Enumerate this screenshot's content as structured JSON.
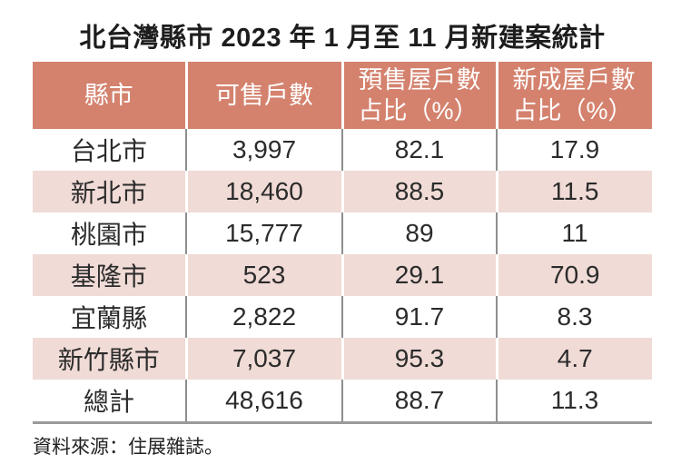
{
  "title": "北台灣縣市 2023 年 1 月至 11 月新建案統計",
  "source_note": "資料來源：住展雜誌。",
  "colors": {
    "header_bg": "#D4826E",
    "header_text": "#FFFFFF",
    "row_pink_bg": "#F0DBD6",
    "row_white_bg": "#FFFFFF",
    "body_text": "#2B2B2B",
    "divider_gray": "#8E8E8E",
    "divider_white": "#FFFFFF",
    "bottom_rule": "#9A9A9A"
  },
  "header_lines": [
    {
      "line1": "縣市",
      "line2": ""
    },
    {
      "line1": "可售戶數",
      "line2": ""
    },
    {
      "line1": "預售屋戶數",
      "line2": "占比（%）"
    },
    {
      "line1": "新成屋戶數",
      "line2": "占比（%）"
    }
  ],
  "chart_data": {
    "type": "table",
    "title": "北台灣縣市 2023 年 1 月至 11 月新建案統計",
    "columns": [
      "縣市",
      "可售戶數",
      "預售屋戶數占比（%）",
      "新成屋戶數占比（%）"
    ],
    "rows": [
      [
        "台北市",
        "3,997",
        "82.1",
        "17.9"
      ],
      [
        "新北市",
        "18,460",
        "88.5",
        "11.5"
      ],
      [
        "桃園市",
        "15,777",
        "89",
        "11"
      ],
      [
        "基隆市",
        "523",
        "29.1",
        "70.9"
      ],
      [
        "宜蘭縣",
        "2,822",
        "91.7",
        "8.3"
      ],
      [
        "新竹縣市",
        "7,037",
        "95.3",
        "4.7"
      ],
      [
        "總計",
        "48,616",
        "88.7",
        "11.3"
      ]
    ],
    "numeric_rows": [
      {
        "county": "台北市",
        "units_for_sale": 3997,
        "presale_pct": 82.1,
        "new_built_pct": 17.9
      },
      {
        "county": "新北市",
        "units_for_sale": 18460,
        "presale_pct": 88.5,
        "new_built_pct": 11.5
      },
      {
        "county": "桃園市",
        "units_for_sale": 15777,
        "presale_pct": 89,
        "new_built_pct": 11
      },
      {
        "county": "基隆市",
        "units_for_sale": 523,
        "presale_pct": 29.1,
        "new_built_pct": 70.9
      },
      {
        "county": "宜蘭縣",
        "units_for_sale": 2822,
        "presale_pct": 91.7,
        "new_built_pct": 8.3
      },
      {
        "county": "新竹縣市",
        "units_for_sale": 7037,
        "presale_pct": 95.3,
        "new_built_pct": 4.7
      },
      {
        "county": "總計",
        "units_for_sale": 48616,
        "presale_pct": 88.7,
        "new_built_pct": 11.3
      }
    ],
    "source": "住展雜誌"
  }
}
